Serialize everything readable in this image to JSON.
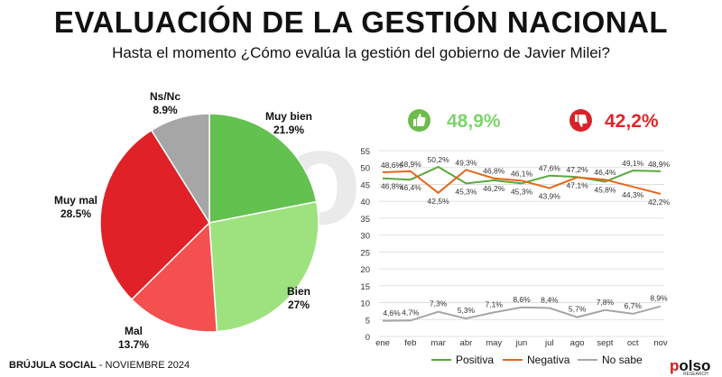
{
  "title": "EVALUACIÓN DE LA GESTIÓN NACIONAL",
  "subtitle": "Hasta el momento ¿Cómo evalúa la gestión del gobierno de Javier Milei?",
  "watermark": "Iso",
  "footer": {
    "brand": "BRÚJULA SOCIAL",
    "date": "- NOVIEMBRE 2024"
  },
  "logo": {
    "text_accent": "p",
    "text_rest": "olso",
    "tag": "RESEARCH"
  },
  "kpis": {
    "positive": "48,9%",
    "negative": "42,2%"
  },
  "legend": [
    "Positiva",
    "Negativa",
    "No sabe"
  ],
  "colors": {
    "muy_bien": "#63c150",
    "bien": "#9ee27f",
    "mal": "#f45050",
    "muy_mal": "#e02128",
    "nsnc": "#a6a6a6",
    "positiva": "#5aa83c",
    "negativa": "#e4661a",
    "no_sabe": "#a6a6a6"
  },
  "icons": {
    "positive": "thumbs-up-icon",
    "negative": "thumbs-down-icon"
  },
  "chart_data": [
    {
      "type": "pie",
      "slices": [
        {
          "label": "Muy bien",
          "value": 21.9,
          "display": "21.9%"
        },
        {
          "label": "Bien",
          "value": 27,
          "display": "27%"
        },
        {
          "label": "Mal",
          "value": 13.7,
          "display": "13.7%"
        },
        {
          "label": "Muy mal",
          "value": 28.5,
          "display": "28.5%"
        },
        {
          "label": "Ns/Nc",
          "value": 8.9,
          "display": "8.9%"
        }
      ]
    },
    {
      "type": "line",
      "categories": [
        "ene",
        "feb",
        "mar",
        "abr",
        "may",
        "jun",
        "jul",
        "ago",
        "sept",
        "oct",
        "nov"
      ],
      "ylim": [
        0,
        55
      ],
      "yticks": [
        0,
        5,
        10,
        15,
        20,
        25,
        30,
        35,
        40,
        45,
        50,
        55
      ],
      "grid": true,
      "series": [
        {
          "name": "Positiva",
          "values": [
            46.8,
            46.4,
            50.2,
            45.3,
            46.2,
            45.3,
            47.6,
            47.2,
            45.8,
            49.1,
            48.9
          ],
          "labels": [
            "46,8%",
            "46,4%",
            "50,2%",
            "45,3%",
            "46,2%",
            "45,3%",
            "47,6%",
            "47,2%",
            "45,8%",
            "49,1%",
            "48,9%"
          ]
        },
        {
          "name": "Negativa",
          "values": [
            48.6,
            48.9,
            42.5,
            49.3,
            46.8,
            46.1,
            43.9,
            47.1,
            46.4,
            44.3,
            42.2
          ],
          "labels": [
            "48,6%",
            "48,9%",
            "42,5%",
            "49,3%",
            "46,8%",
            "46,1%",
            "43,9%",
            "47,1%",
            "46,4%",
            "44,3%",
            "42,2%"
          ]
        },
        {
          "name": "No sabe",
          "values": [
            4.6,
            4.7,
            7.3,
            5.3,
            7.1,
            8.6,
            8.4,
            5.7,
            7.8,
            6.7,
            8.9
          ],
          "labels": [
            "4,6%",
            "4,7%",
            "7,3%",
            "5,3%",
            "7,1%",
            "8,6%",
            "8,4%",
            "5,7%",
            "7,8%",
            "6,7%",
            "8,9%"
          ]
        }
      ]
    }
  ]
}
